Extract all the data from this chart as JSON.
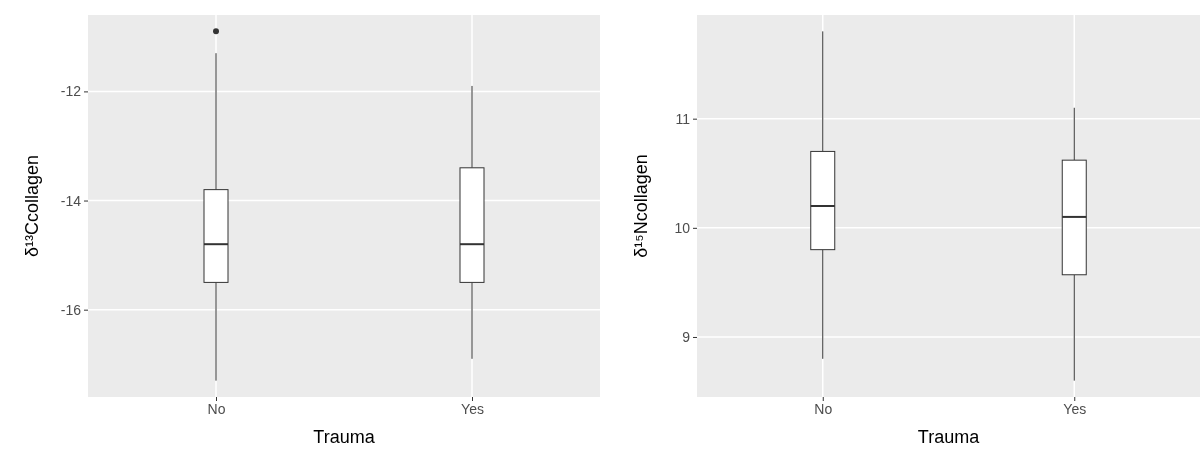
{
  "chart_data": [
    {
      "type": "box",
      "xlabel": "Trauma",
      "ylabel": "δ¹³Ccollagen",
      "categories": [
        "No",
        "Yes"
      ],
      "ylim": [
        -17.6,
        -10.6
      ],
      "yticks": [
        -16,
        -14,
        -12
      ],
      "grid": true,
      "boxes": [
        {
          "low": -17.3,
          "q1": -15.5,
          "median": -14.8,
          "q3": -13.8,
          "high": -11.3,
          "outliers": [
            -10.9
          ]
        },
        {
          "low": -16.9,
          "q1": -15.5,
          "median": -14.8,
          "q3": -13.4,
          "high": -11.9
        }
      ]
    },
    {
      "type": "box",
      "xlabel": "Trauma",
      "ylabel": "δ¹⁵Ncollagen",
      "categories": [
        "No",
        "Yes"
      ],
      "ylim": [
        8.45,
        11.95
      ],
      "yticks": [
        9,
        10,
        11
      ],
      "grid": true,
      "boxes": [
        {
          "low": 8.8,
          "q1": 9.8,
          "median": 10.2,
          "q3": 10.7,
          "high": 11.8
        },
        {
          "low": 8.6,
          "q1": 9.57,
          "median": 10.1,
          "q3": 10.62,
          "high": 11.1
        }
      ]
    }
  ]
}
